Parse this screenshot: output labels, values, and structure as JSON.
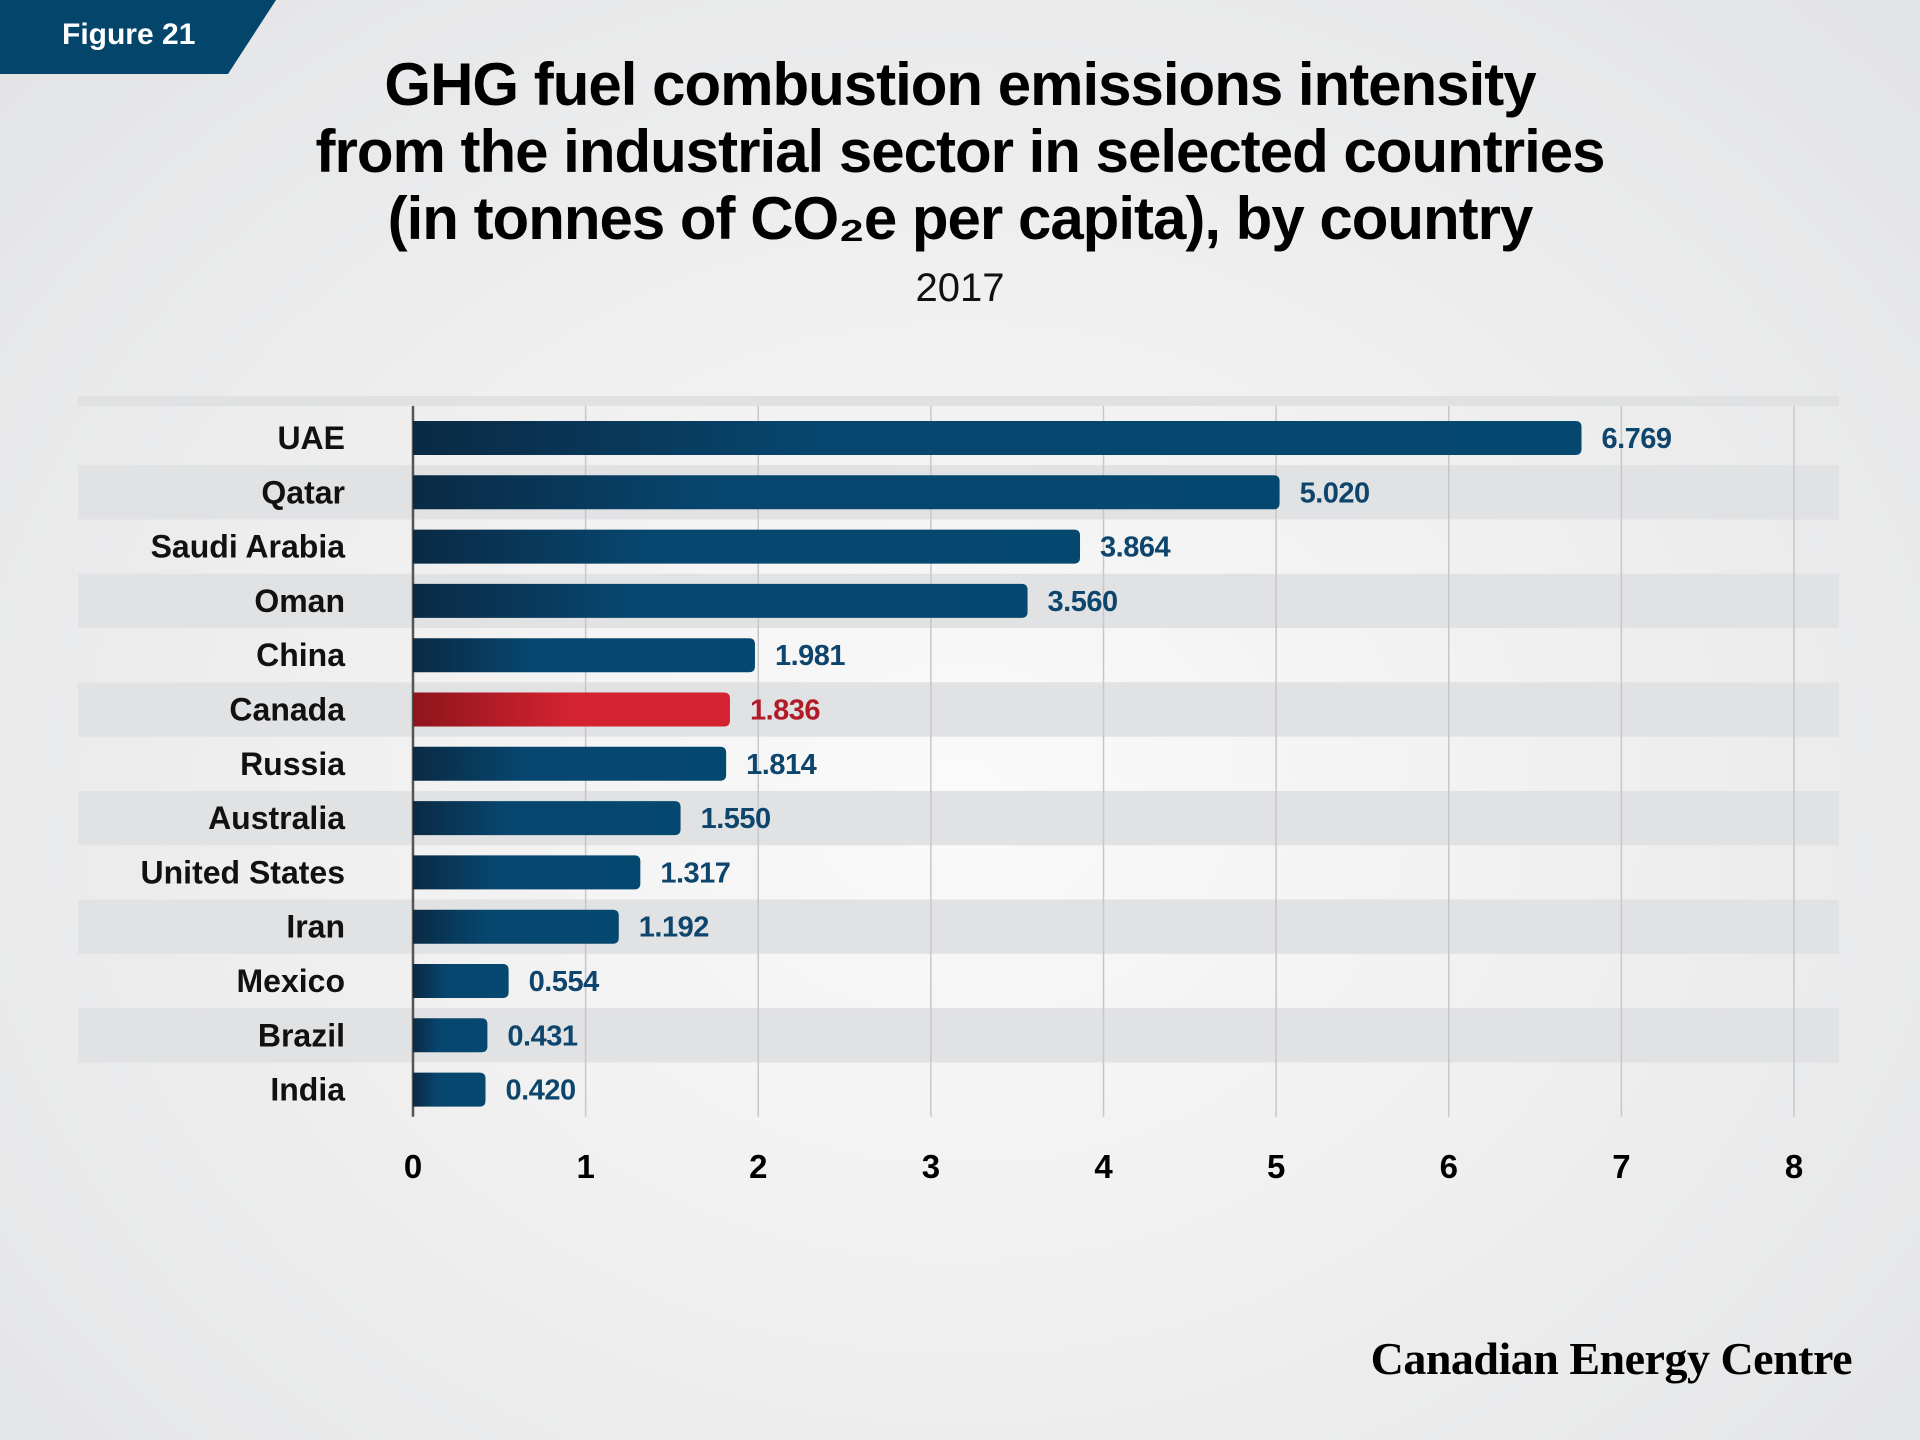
{
  "badge": {
    "label": "Figure 21",
    "color": "#04456b"
  },
  "title_lines": [
    "GHG fuel combustion emissions intensity",
    "from the industrial sector in selected countries",
    "(in tonnes of CO₂e per capita), by country"
  ],
  "subtitle": "2017",
  "logo": "Canadian Energy Centre",
  "chart_data": {
    "type": "bar",
    "orientation": "horizontal",
    "title": "GHG fuel combustion emissions intensity from the industrial sector in selected countries (in tonnes of CO₂e per capita), by country",
    "subtitle": "2017",
    "categories": [
      "UAE",
      "Qatar",
      "Saudi Arabia",
      "Oman",
      "China",
      "Canada",
      "Russia",
      "Australia",
      "United States",
      "Iran",
      "Mexico",
      "Brazil",
      "India"
    ],
    "values": [
      6.769,
      5.02,
      3.864,
      3.56,
      1.981,
      1.836,
      1.814,
      1.55,
      1.317,
      1.192,
      0.554,
      0.431,
      0.42
    ],
    "value_labels": [
      "6.769",
      "5.020",
      "3.864",
      "3.560",
      "1.981",
      "1.836",
      "1.814",
      "1.550",
      "1.317",
      "1.192",
      "0.554",
      "0.431",
      "0.420"
    ],
    "highlight": "Canada",
    "xlim": [
      0,
      8
    ],
    "xticks": [
      "0",
      "1",
      "2",
      "3",
      "4",
      "5",
      "6",
      "7",
      "8"
    ],
    "grid": true,
    "colors": {
      "bar": "#07466f",
      "bar_dark": "#0a2a44",
      "highlight": "#d42231",
      "highlight_dark": "#8e151c",
      "value_label": "#0d456c",
      "highlight_label": "#b01b27"
    }
  }
}
